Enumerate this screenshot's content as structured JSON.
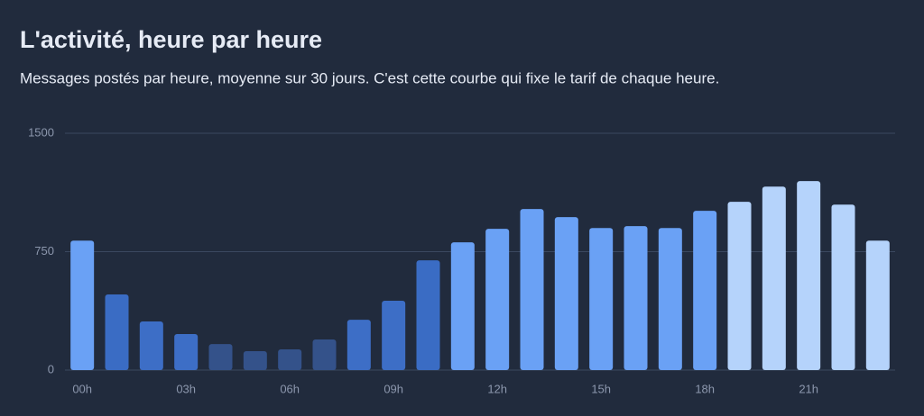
{
  "chart_data": {
    "type": "bar",
    "title": "L'activité, heure par heure",
    "subtitle": "Messages postés par heure, moyenne sur 30 jours. C'est cette courbe qui fixe le tarif de chaque heure.",
    "categories": [
      "00h",
      null,
      null,
      "03h",
      null,
      null,
      "06h",
      null,
      null,
      "09h",
      null,
      null,
      "12h",
      null,
      null,
      "15h",
      null,
      null,
      "18h",
      null,
      null,
      "21h",
      null,
      null
    ],
    "values": [
      820,
      479,
      308,
      228,
      165,
      120,
      131,
      194,
      319,
      439,
      695,
      809,
      895,
      1020,
      969,
      900,
      912,
      900,
      1009,
      1066,
      1162,
      1197,
      1048,
      820
    ],
    "colors": [
      "#6aa1f5",
      "#3a6cc4",
      "#3d6ec6",
      "#3d6ec6",
      "#34528a",
      "#34528a",
      "#34528a",
      "#34528a",
      "#3d6ec6",
      "#3d6ec6",
      "#3a6cc4",
      "#6aa1f5",
      "#6aa1f5",
      "#6aa1f5",
      "#6aa1f5",
      "#6aa1f5",
      "#6aa1f5",
      "#6aa1f5",
      "#6aa1f5",
      "#b5d3fb",
      "#b5d3fb",
      "#b5d3fb",
      "#b5d3fb",
      "#b5d3fb"
    ],
    "ylim": [
      0,
      1500
    ],
    "yticks": [
      0,
      750,
      1500
    ],
    "grid": true
  }
}
